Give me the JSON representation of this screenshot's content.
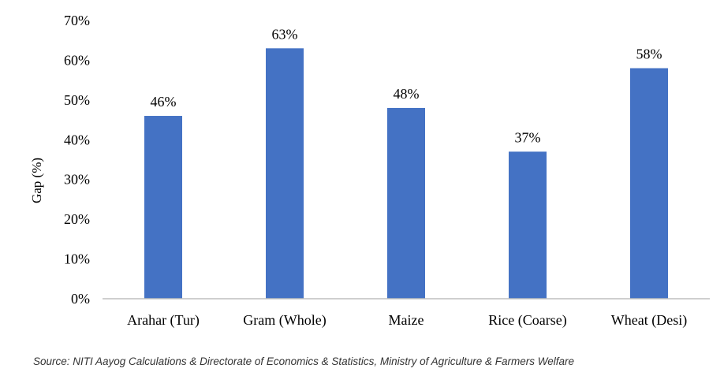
{
  "chart_data": {
    "type": "bar",
    "title": "",
    "xlabel": "",
    "ylabel": "Gap (%)",
    "categories": [
      "Arahar (Tur)",
      "Gram (Whole)",
      "Maize",
      "Rice (Coarse)",
      "Wheat (Desi)"
    ],
    "values": [
      46,
      63,
      48,
      37,
      58
    ],
    "data_labels": [
      "46%",
      "63%",
      "48%",
      "37%",
      "58%"
    ],
    "ylim": [
      0,
      70
    ],
    "y_ticks": [
      0,
      10,
      20,
      30,
      40,
      50,
      60,
      70
    ],
    "y_tick_labels": [
      "0%",
      "10%",
      "20%",
      "30%",
      "40%",
      "50%",
      "60%",
      "70%"
    ],
    "grid": false,
    "legend": "none",
    "bar_color": "#4472C4"
  },
  "source": "Source: NITI Aayog Calculations & Directorate of Economics & Statistics, Ministry of Agriculture & Farmers Welfare"
}
